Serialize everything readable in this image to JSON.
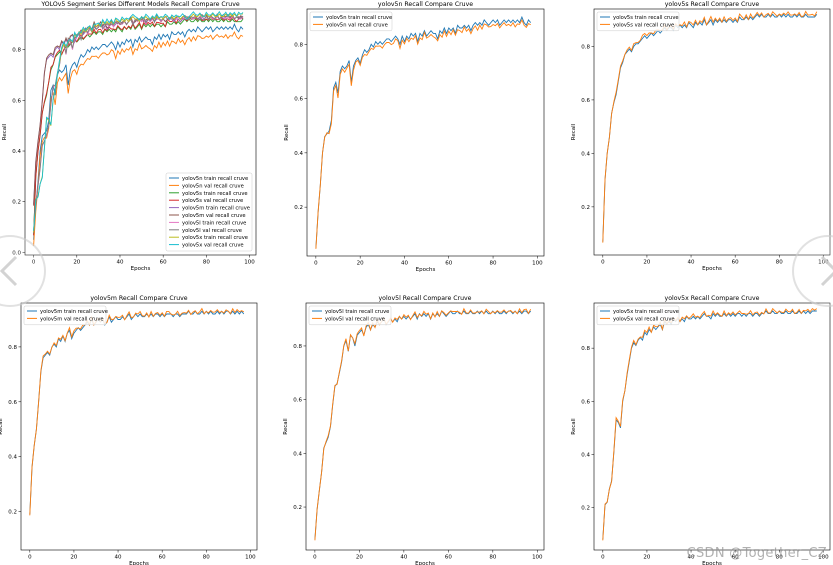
{
  "watermark": "CSDN @Together_CZ",
  "nav": {
    "prev_icon": "chevron-left-icon",
    "next_icon": "chevron-right-icon"
  },
  "chart_data": [
    {
      "type": "line",
      "title": "YOLOv5 Segment Series Different Models Recall Compare Cruve",
      "xlabel": "Epochs",
      "ylabel": "Recall",
      "xlim": [
        -4,
        103
      ],
      "ylim": [
        -0.01,
        0.96
      ],
      "xticks": [
        0,
        20,
        40,
        60,
        80,
        100
      ],
      "yticks": [
        0.0,
        0.2,
        0.4,
        0.6,
        0.8
      ],
      "legend_position": "lower-right",
      "series": [
        {
          "name": "yolov5n train recall cruve",
          "color": "#1f77b4",
          "kind": "n"
        },
        {
          "name": "yolov5n val recall cruve",
          "color": "#ff7f0e",
          "kind": "n"
        },
        {
          "name": "yolov5s train recall cruve",
          "color": "#2ca02c",
          "kind": "s"
        },
        {
          "name": "yolov5s val recall cruve",
          "color": "#d62728",
          "kind": "s"
        },
        {
          "name": "yolov5m train recall cruve",
          "color": "#9467bd",
          "kind": "m"
        },
        {
          "name": "yolov5m val recall cruve",
          "color": "#8c564b",
          "kind": "m"
        },
        {
          "name": "yolov5l train recall cruve",
          "color": "#e377c2",
          "kind": "l"
        },
        {
          "name": "yolov5l val recall cruve",
          "color": "#7f7f7f",
          "kind": "l"
        },
        {
          "name": "yolov5x train recall cruve",
          "color": "#bcbd22",
          "kind": "x"
        },
        {
          "name": "yolov5x val recall cruve",
          "color": "#17becf",
          "kind": "x"
        }
      ]
    },
    {
      "type": "line",
      "title": "yolov5n Recall Compare Cruve",
      "xlabel": "Epochs",
      "ylabel": "Recall",
      "xlim": [
        -4,
        103
      ],
      "ylim": [
        0.02,
        0.93
      ],
      "xticks": [
        0,
        20,
        40,
        60,
        80,
        100
      ],
      "yticks": [
        0.2,
        0.4,
        0.6,
        0.8
      ],
      "legend_position": "upper-left",
      "series": [
        {
          "name": "yolov5n train recall cruve",
          "color": "#1f77b4",
          "kind": "n"
        },
        {
          "name": "yolov5n val recall cruve",
          "color": "#ff7f0e",
          "kind": "n"
        }
      ]
    },
    {
      "type": "line",
      "title": "yolov5s Recall Compare Cruve",
      "xlabel": "Epochs",
      "ylabel": "Recall",
      "xlim": [
        -4,
        103
      ],
      "ylim": [
        0.02,
        0.94
      ],
      "xticks": [
        0,
        20,
        40,
        60,
        80,
        100
      ],
      "yticks": [
        0.2,
        0.4,
        0.6,
        0.8
      ],
      "legend_position": "upper-left",
      "series": [
        {
          "name": "yolov5s train recall cruve",
          "color": "#1f77b4",
          "kind": "s"
        },
        {
          "name": "yolov5s val recall cruve",
          "color": "#ff7f0e",
          "kind": "s"
        }
      ]
    },
    {
      "type": "line",
      "title": "yolov5m Recall Compare Cruve",
      "xlabel": "Epochs",
      "ylabel": "Recall",
      "xlim": [
        -4,
        103
      ],
      "ylim": [
        0.06,
        0.96
      ],
      "xticks": [
        0,
        20,
        40,
        60,
        80,
        100
      ],
      "yticks": [
        0.2,
        0.4,
        0.6,
        0.8
      ],
      "legend_position": "upper-left",
      "series": [
        {
          "name": "yolov5m train recall cruve",
          "color": "#1f77b4",
          "kind": "m"
        },
        {
          "name": "yolov5m val recall cruve",
          "color": "#ff7f0e",
          "kind": "m"
        }
      ]
    },
    {
      "type": "line",
      "title": "yolov5l Recall Compare Cruve",
      "xlabel": "Epochs",
      "ylabel": "Recall",
      "xlim": [
        -4,
        103
      ],
      "ylim": [
        0.04,
        0.96
      ],
      "xticks": [
        0,
        20,
        40,
        60,
        80,
        100
      ],
      "yticks": [
        0.2,
        0.4,
        0.6,
        0.8
      ],
      "legend_position": "upper-left",
      "series": [
        {
          "name": "yolov5l train recall cruve",
          "color": "#1f77b4",
          "kind": "l"
        },
        {
          "name": "yolov5l val recall cruve",
          "color": "#ff7f0e",
          "kind": "l"
        }
      ]
    },
    {
      "type": "line",
      "title": "yolov5x Recall Compare Cruve",
      "xlabel": "Epochs",
      "ylabel": "Recall",
      "xlim": [
        -4,
        103
      ],
      "ylim": [
        0.04,
        0.97
      ],
      "xticks": [
        0,
        20,
        40,
        60,
        80,
        100
      ],
      "yticks": [
        0.2,
        0.4,
        0.6,
        0.8
      ],
      "legend_position": "upper-left",
      "series": [
        {
          "name": "yolov5x train recall cruve",
          "color": "#1f77b4",
          "kind": "x"
        },
        {
          "name": "yolov5x val recall cruve",
          "color": "#ff7f0e",
          "kind": "x"
        }
      ]
    }
  ],
  "recall_curves": {
    "epochs": [
      0,
      1,
      2,
      3,
      4,
      5,
      6,
      7,
      8,
      9,
      10,
      11,
      12,
      13,
      14,
      15,
      16,
      17,
      18,
      19,
      20,
      21,
      22,
      23,
      24,
      25,
      26,
      27,
      28,
      29,
      30,
      31,
      32,
      33,
      34,
      35,
      36,
      37,
      38,
      39,
      40,
      41,
      42,
      43,
      44,
      45,
      46,
      47,
      48,
      49,
      50,
      51,
      52,
      53,
      54,
      55,
      56,
      57,
      58,
      59,
      60,
      61,
      62,
      63,
      64,
      65,
      66,
      67,
      68,
      69,
      70,
      71,
      72,
      73,
      74,
      75,
      76,
      77,
      78,
      79,
      80,
      81,
      82,
      83,
      84,
      85,
      86,
      87,
      88,
      89,
      90,
      91,
      92,
      93,
      94,
      95,
      96,
      97
    ],
    "n": [
      0.05,
      0.18,
      0.28,
      0.4,
      0.46,
      0.47,
      0.48,
      0.52,
      0.64,
      0.66,
      0.62,
      0.7,
      0.72,
      0.71,
      0.72,
      0.74,
      0.66,
      0.72,
      0.74,
      0.75,
      0.73,
      0.76,
      0.78,
      0.77,
      0.78,
      0.8,
      0.79,
      0.81,
      0.8,
      0.81,
      0.8,
      0.81,
      0.82,
      0.82,
      0.81,
      0.82,
      0.83,
      0.82,
      0.8,
      0.83,
      0.81,
      0.83,
      0.82,
      0.84,
      0.83,
      0.84,
      0.81,
      0.84,
      0.83,
      0.85,
      0.83,
      0.84,
      0.85,
      0.84,
      0.84,
      0.82,
      0.85,
      0.84,
      0.86,
      0.84,
      0.86,
      0.85,
      0.86,
      0.84,
      0.87,
      0.86,
      0.86,
      0.87,
      0.86,
      0.87,
      0.85,
      0.87,
      0.88,
      0.87,
      0.88,
      0.87,
      0.89,
      0.88,
      0.87,
      0.88,
      0.89,
      0.88,
      0.89,
      0.87,
      0.88,
      0.89,
      0.88,
      0.89,
      0.88,
      0.89,
      0.88,
      0.89,
      0.88,
      0.9,
      0.88,
      0.87,
      0.89,
      0.88
    ],
    "s": [
      0.07,
      0.3,
      0.4,
      0.46,
      0.55,
      0.59,
      0.62,
      0.67,
      0.72,
      0.74,
      0.77,
      0.78,
      0.79,
      0.78,
      0.8,
      0.81,
      0.81,
      0.82,
      0.83,
      0.84,
      0.83,
      0.84,
      0.85,
      0.84,
      0.85,
      0.86,
      0.85,
      0.86,
      0.87,
      0.86,
      0.87,
      0.87,
      0.86,
      0.88,
      0.87,
      0.88,
      0.87,
      0.88,
      0.87,
      0.89,
      0.88,
      0.87,
      0.89,
      0.88,
      0.89,
      0.88,
      0.9,
      0.88,
      0.89,
      0.9,
      0.88,
      0.9,
      0.89,
      0.9,
      0.89,
      0.9,
      0.89,
      0.9,
      0.9,
      0.89,
      0.9,
      0.89,
      0.91,
      0.9,
      0.9,
      0.91,
      0.9,
      0.91,
      0.9,
      0.91,
      0.92,
      0.91,
      0.92,
      0.91,
      0.91,
      0.92,
      0.91,
      0.92,
      0.91,
      0.91,
      0.92,
      0.91,
      0.92,
      0.91,
      0.92,
      0.91,
      0.91,
      0.92,
      0.91,
      0.92,
      0.91,
      0.91,
      0.92,
      0.91,
      0.91,
      0.91,
      0.91,
      0.92
    ],
    "m": [
      0.19,
      0.36,
      0.44,
      0.5,
      0.6,
      0.71,
      0.76,
      0.77,
      0.78,
      0.77,
      0.8,
      0.81,
      0.8,
      0.83,
      0.82,
      0.84,
      0.82,
      0.85,
      0.86,
      0.83,
      0.85,
      0.86,
      0.87,
      0.86,
      0.87,
      0.88,
      0.89,
      0.88,
      0.9,
      0.88,
      0.89,
      0.9,
      0.89,
      0.9,
      0.88,
      0.89,
      0.91,
      0.89,
      0.9,
      0.91,
      0.9,
      0.9,
      0.91,
      0.9,
      0.91,
      0.92,
      0.9,
      0.91,
      0.92,
      0.91,
      0.92,
      0.91,
      0.91,
      0.92,
      0.91,
      0.92,
      0.91,
      0.92,
      0.92,
      0.91,
      0.92,
      0.91,
      0.92,
      0.92,
      0.92,
      0.91,
      0.92,
      0.92,
      0.91,
      0.92,
      0.92,
      0.92,
      0.93,
      0.92,
      0.92,
      0.93,
      0.92,
      0.92,
      0.93,
      0.92,
      0.93,
      0.92,
      0.93,
      0.92,
      0.92,
      0.93,
      0.92,
      0.93,
      0.92,
      0.93,
      0.93,
      0.92,
      0.93,
      0.92,
      0.93,
      0.92,
      0.93,
      0.92
    ],
    "l": [
      0.08,
      0.19,
      0.26,
      0.33,
      0.42,
      0.44,
      0.46,
      0.5,
      0.58,
      0.65,
      0.66,
      0.7,
      0.74,
      0.8,
      0.82,
      0.78,
      0.84,
      0.83,
      0.8,
      0.84,
      0.85,
      0.86,
      0.84,
      0.87,
      0.88,
      0.86,
      0.88,
      0.87,
      0.89,
      0.88,
      0.89,
      0.9,
      0.88,
      0.89,
      0.9,
      0.89,
      0.9,
      0.89,
      0.91,
      0.9,
      0.91,
      0.9,
      0.91,
      0.9,
      0.91,
      0.92,
      0.9,
      0.92,
      0.91,
      0.92,
      0.91,
      0.92,
      0.9,
      0.92,
      0.91,
      0.92,
      0.91,
      0.93,
      0.92,
      0.91,
      0.92,
      0.93,
      0.92,
      0.92,
      0.93,
      0.92,
      0.92,
      0.93,
      0.92,
      0.92,
      0.93,
      0.92,
      0.92,
      0.93,
      0.92,
      0.93,
      0.92,
      0.93,
      0.92,
      0.92,
      0.93,
      0.92,
      0.93,
      0.92,
      0.92,
      0.93,
      0.92,
      0.93,
      0.93,
      0.92,
      0.93,
      0.92,
      0.93,
      0.92,
      0.93,
      0.93,
      0.92,
      0.93
    ],
    "x": [
      0.08,
      0.21,
      0.22,
      0.27,
      0.3,
      0.41,
      0.53,
      0.52,
      0.5,
      0.6,
      0.64,
      0.7,
      0.75,
      0.8,
      0.82,
      0.81,
      0.83,
      0.84,
      0.83,
      0.86,
      0.85,
      0.87,
      0.86,
      0.88,
      0.87,
      0.88,
      0.89,
      0.87,
      0.9,
      0.89,
      0.9,
      0.89,
      0.91,
      0.9,
      0.91,
      0.9,
      0.91,
      0.9,
      0.92,
      0.91,
      0.91,
      0.92,
      0.91,
      0.92,
      0.91,
      0.92,
      0.93,
      0.92,
      0.92,
      0.91,
      0.93,
      0.92,
      0.93,
      0.92,
      0.92,
      0.93,
      0.92,
      0.93,
      0.92,
      0.93,
      0.92,
      0.93,
      0.93,
      0.92,
      0.93,
      0.92,
      0.93,
      0.93,
      0.92,
      0.93,
      0.93,
      0.92,
      0.93,
      0.93,
      0.94,
      0.93,
      0.93,
      0.94,
      0.93,
      0.93,
      0.94,
      0.93,
      0.93,
      0.94,
      0.93,
      0.93,
      0.94,
      0.93,
      0.93,
      0.94,
      0.93,
      0.94,
      0.93,
      0.94,
      0.93,
      0.94,
      0.94,
      0.94
    ]
  }
}
